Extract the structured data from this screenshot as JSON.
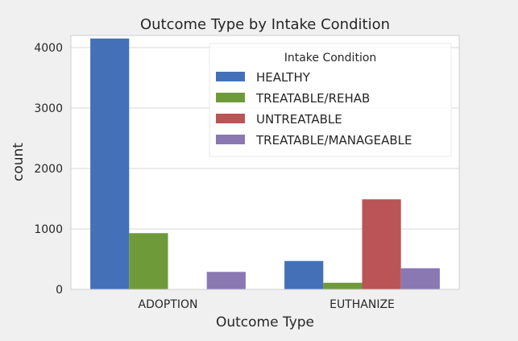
{
  "chart_data": {
    "type": "bar",
    "title": "Outcome Type by Intake Condition",
    "xlabel": "Outcome Type",
    "ylabel": "count",
    "categories": [
      "ADOPTION",
      "EUTHANIZE"
    ],
    "series": [
      {
        "name": "HEALTHY",
        "values": [
          4150,
          470
        ],
        "color": "#4470b8"
      },
      {
        "name": "TREATABLE/REHAB",
        "values": [
          930,
          110
        ],
        "color": "#6f9a3a"
      },
      {
        "name": "UNTREATABLE",
        "values": [
          0,
          1490
        ],
        "color": "#bb5456"
      },
      {
        "name": "TREATABLE/MANAGEABLE",
        "values": [
          290,
          350
        ],
        "color": "#8a78b3"
      }
    ],
    "ylim": [
      0,
      4200
    ],
    "yticks": [
      "0",
      "1000",
      "2000",
      "3000",
      "4000"
    ],
    "ytick_values": [
      0,
      1000,
      2000,
      3000,
      4000
    ],
    "legend_title": "Intake Condition",
    "legend_position": "top-right",
    "grid": true
  }
}
